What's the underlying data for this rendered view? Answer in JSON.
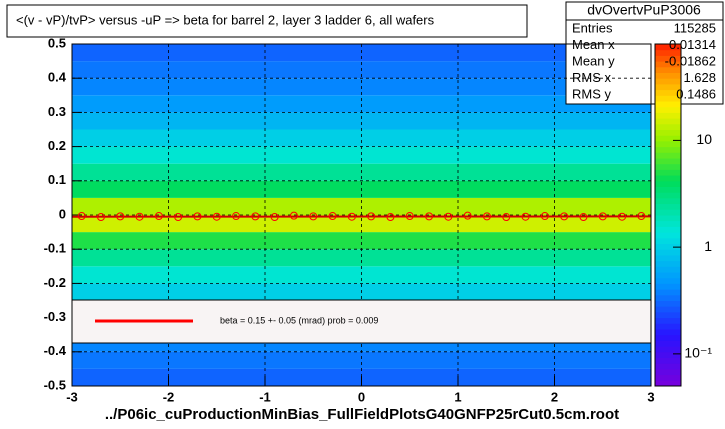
{
  "chart_data": {
    "type": "heatmap",
    "title": "<(v - vP)/tvP> versus  -uP => beta for barrel 2, layer 3 ladder 6, all wafers",
    "x_label": "../P06ic_cuProductionMinBias_FullFieldPlotsG40GNFP25rCut0.5cm.root",
    "xlim": [
      -3,
      3
    ],
    "xticks": [
      -3,
      -2,
      -1,
      0,
      1,
      2,
      3
    ],
    "ylim": [
      -0.5,
      0.5
    ],
    "yticks": [
      -0.5,
      -0.4,
      -0.3,
      -0.2,
      -0.1,
      0,
      0.1,
      0.2,
      0.3,
      0.4,
      0.5
    ],
    "grid": true,
    "ybins": [
      -0.5,
      -0.45,
      -0.4,
      -0.35,
      -0.3,
      -0.25,
      -0.2,
      -0.15,
      -0.1,
      -0.05,
      0,
      0.05,
      0.1,
      0.15,
      0.2,
      0.25,
      0.3,
      0.35,
      0.4,
      0.45,
      0.5
    ],
    "values": [
      0.3,
      0.35,
      0.4,
      0.5,
      0.7,
      1,
      1.5,
      2.5,
      5,
      15,
      12,
      4,
      2.5,
      1.5,
      1,
      0.7,
      0.5,
      0.4,
      0.35,
      0.3
    ],
    "zlim": [
      0.05,
      80
    ],
    "zlog": true,
    "zticks": [
      {
        "value": 0.1,
        "label": "10⁻¹"
      },
      1,
      10
    ],
    "profile": {
      "color": "#ff0000",
      "x": [
        -2.9,
        -2.7,
        -2.5,
        -2.3,
        -2.1,
        -1.9,
        -1.7,
        -1.5,
        -1.3,
        -1.1,
        -0.9,
        -0.7,
        -0.5,
        -0.3,
        -0.1,
        0.1,
        0.3,
        0.5,
        0.7,
        0.9,
        1.1,
        1.3,
        1.5,
        1.7,
        1.9,
        2.1,
        2.3,
        2.5,
        2.7,
        2.9
      ],
      "values": [
        -0.003,
        -0.006,
        -0.004,
        -0.005,
        -0.003,
        -0.006,
        -0.004,
        -0.005,
        -0.003,
        -0.004,
        -0.006,
        -0.002,
        -0.004,
        -0.003,
        -0.005,
        -0.004,
        -0.006,
        -0.003,
        -0.004,
        -0.005,
        -0.002,
        -0.004,
        -0.006,
        -0.005,
        -0.003,
        -0.004,
        -0.006,
        -0.004,
        -0.005,
        -0.003
      ]
    },
    "fit_line": {
      "color": "#cc0000",
      "x": [
        -3,
        3
      ],
      "y": [
        -0.005,
        -0.004
      ]
    },
    "legend": {
      "label": "beta =    0.15 +-  0.05 (mrad) prob = 0.009",
      "color": "#ff0000"
    },
    "stats": {
      "title": "dvOvertvPuP3006",
      "rows": [
        {
          "label": "Entries",
          "value": 115285
        },
        {
          "label": "Mean x",
          "value": 0.01314
        },
        {
          "label": "Mean y",
          "value": -0.01862
        },
        {
          "label": "RMS x",
          "value": 1.628
        },
        {
          "label": "RMS y",
          "value": 0.1486
        }
      ]
    }
  }
}
